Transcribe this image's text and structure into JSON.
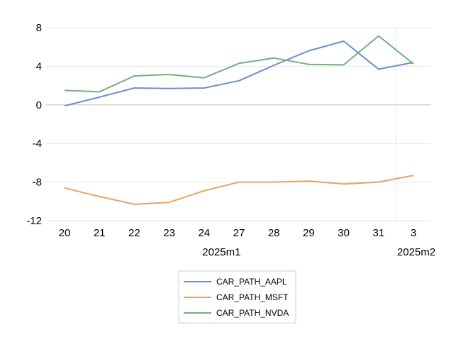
{
  "chart_data": {
    "type": "line",
    "title": "",
    "xlabel": "",
    "ylabel": "",
    "categories": [
      "20",
      "21",
      "22",
      "23",
      "24",
      "27",
      "28",
      "29",
      "30",
      "31",
      "3"
    ],
    "category_groups": [
      {
        "label": "2025m1",
        "categories": [
          "20",
          "21",
          "22",
          "23",
          "24",
          "27",
          "28",
          "29",
          "30",
          "31"
        ]
      },
      {
        "label": "2025m2",
        "categories": [
          "3"
        ]
      }
    ],
    "ylim": [
      -12,
      8
    ],
    "yticks": [
      8,
      4,
      0,
      -4,
      -8,
      -12
    ],
    "grid": true,
    "legend_position": "bottom",
    "series": [
      {
        "name": "CAR_PATH_AAPL",
        "color": "#6f8fc9",
        "values": [
          -0.1,
          0.8,
          1.75,
          1.7,
          1.75,
          2.5,
          4.1,
          5.6,
          6.6,
          3.7,
          4.4
        ]
      },
      {
        "name": "CAR_PATH_MSFT",
        "color": "#eca267",
        "values": [
          -8.6,
          -9.5,
          -10.3,
          -10.1,
          -8.9,
          -8.0,
          -8.0,
          -7.9,
          -8.2,
          -8.0,
          -7.3
        ]
      },
      {
        "name": "CAR_PATH_NVDA",
        "color": "#72b07a",
        "values": [
          1.5,
          1.35,
          3.0,
          3.15,
          2.8,
          4.3,
          4.85,
          4.2,
          4.15,
          7.15,
          4.25
        ]
      }
    ]
  }
}
